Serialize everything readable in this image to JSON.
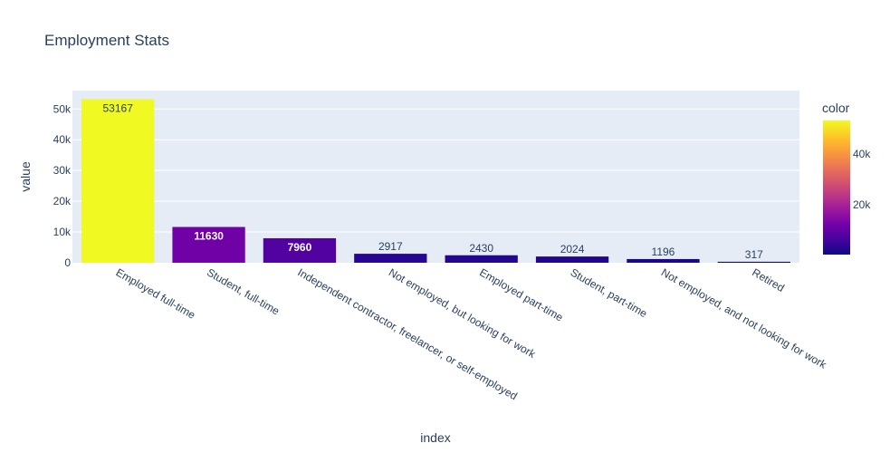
{
  "chart_data": {
    "type": "bar",
    "title": "Employment Stats",
    "xlabel": "index",
    "ylabel": "value",
    "categories": [
      "Employed full-time",
      "Student, full-time",
      "Independent contractor, freelancer, or self-employed",
      "Not employed, but looking for work",
      "Employed part-time",
      "Student, part-time",
      "Not employed, and not looking for work",
      "Retired"
    ],
    "values": [
      53167,
      11630,
      7960,
      2917,
      2430,
      2024,
      1196,
      317
    ],
    "ylim": [
      0,
      55966
    ],
    "yticks": [
      0,
      10000,
      20000,
      30000,
      40000,
      50000
    ],
    "ytick_labels": [
      "0",
      "10k",
      "20k",
      "30k",
      "40k",
      "50k"
    ],
    "grid": true,
    "colorbar": {
      "title": "color",
      "range": [
        317,
        53167
      ],
      "ticks": [
        20000,
        40000
      ],
      "tick_labels": [
        "20k",
        "40k"
      ],
      "colorscale": [
        "#0d0887",
        "#46039f",
        "#7201a8",
        "#9c179e",
        "#bd3786",
        "#d8576b",
        "#ed7953",
        "#fb9f3a",
        "#fdca26",
        "#f0f921"
      ]
    },
    "colors": {
      "plot_bg": "#e5ecf6",
      "grid": "#ffffff",
      "text": "#2a3f5f"
    }
  }
}
